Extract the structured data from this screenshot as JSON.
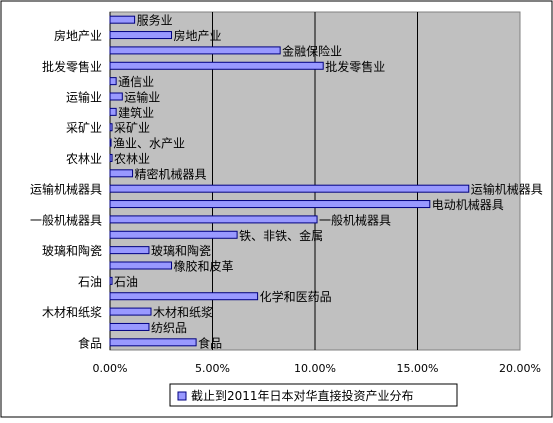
{
  "chart_data": {
    "type": "bar",
    "orientation": "horizontal",
    "categories": [
      "服务业",
      "房地产业",
      "金融保险业",
      "批发零售业",
      "通信业",
      "运输业",
      "建筑业",
      "采矿业",
      "渔业、水产业",
      "农林业",
      "精密机械器具",
      "运输机械器具",
      "电动机械器具",
      "一般机械器具",
      "铁、非铁、金属",
      "玻璃和陶瓷",
      "橡胶和皮革",
      "石油",
      "化学和医药品",
      "木材和纸浆",
      "纺织品",
      "食品"
    ],
    "y_tick_labels": [
      "房地产业",
      "批发零售业",
      "运输业",
      "采矿业",
      "农林业",
      "运输机械器具",
      "一般机械器具",
      "玻璃和陶瓷",
      "石油",
      "木材和纸浆",
      "食品"
    ],
    "series": [
      {
        "name": "截止到2011年日本对华直接投资产业分布",
        "values": [
          1.2,
          3.0,
          8.3,
          10.4,
          0.3,
          0.6,
          0.3,
          0.1,
          0.05,
          0.1,
          1.1,
          17.5,
          15.6,
          10.1,
          6.2,
          1.9,
          3.0,
          0.1,
          7.2,
          2.0,
          1.9,
          4.2
        ]
      }
    ],
    "xlim": [
      0,
      20
    ],
    "x_ticks": [
      0,
      5,
      10,
      15,
      20
    ],
    "x_tick_labels": [
      "0.00%",
      "5.00%",
      "10.00%",
      "15.00%",
      "20.00%"
    ],
    "grid": "vertical",
    "legend": "bottom",
    "colors": {
      "bar_fill": "#9999ff",
      "bar_stroke": "#000080",
      "plot_bg": "#c0c0c0",
      "gridline": "#000000"
    }
  }
}
